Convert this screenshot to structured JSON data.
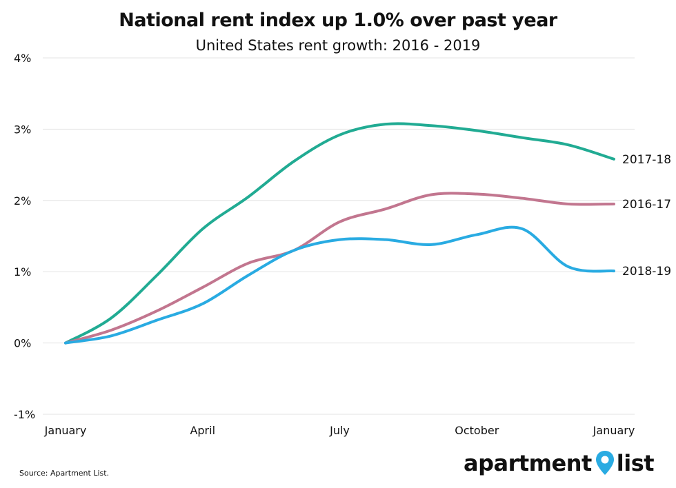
{
  "title": "National rent index up 1.0% over past year",
  "subtitle": "United States rent growth: 2016 - 2019",
  "source": "Source: Apartment List.",
  "logo": {
    "left_text": "apartment",
    "right_text": "list",
    "pin_color": "#29abe2"
  },
  "chart_data": {
    "type": "line",
    "title": "National rent index up 1.0% over past year",
    "subtitle": "United States rent growth: 2016 - 2019",
    "x_ticks": [
      "January",
      "April",
      "July",
      "October",
      "January"
    ],
    "x_tick_months": [
      0,
      3,
      6,
      9,
      12
    ],
    "y_ticks": [
      "-1%",
      "0%",
      "1%",
      "2%",
      "3%",
      "4%"
    ],
    "y_tick_values": [
      -1,
      0,
      1,
      2,
      3,
      4
    ],
    "ylim": [
      -1,
      4
    ],
    "xlim": [
      0,
      12
    ],
    "grid": "horizontal",
    "x": [
      0,
      1,
      2,
      3,
      4,
      5,
      6,
      7,
      8,
      9,
      10,
      11,
      12
    ],
    "series": [
      {
        "name": "2017-18",
        "color": "#21ab93",
        "values": [
          0,
          0.35,
          0.95,
          1.6,
          2.05,
          2.55,
          2.92,
          3.07,
          3.05,
          2.98,
          2.88,
          2.78,
          2.58
        ]
      },
      {
        "name": "2016-17",
        "color": "#c2768f",
        "values": [
          0,
          0.18,
          0.45,
          0.78,
          1.12,
          1.3,
          1.7,
          1.88,
          2.08,
          2.09,
          2.03,
          1.95,
          1.95
        ]
      },
      {
        "name": "2018-19",
        "color": "#29abe2",
        "values": [
          0,
          0.1,
          0.32,
          0.55,
          0.95,
          1.3,
          1.45,
          1.45,
          1.38,
          1.52,
          1.6,
          1.07,
          1.01
        ]
      }
    ]
  }
}
